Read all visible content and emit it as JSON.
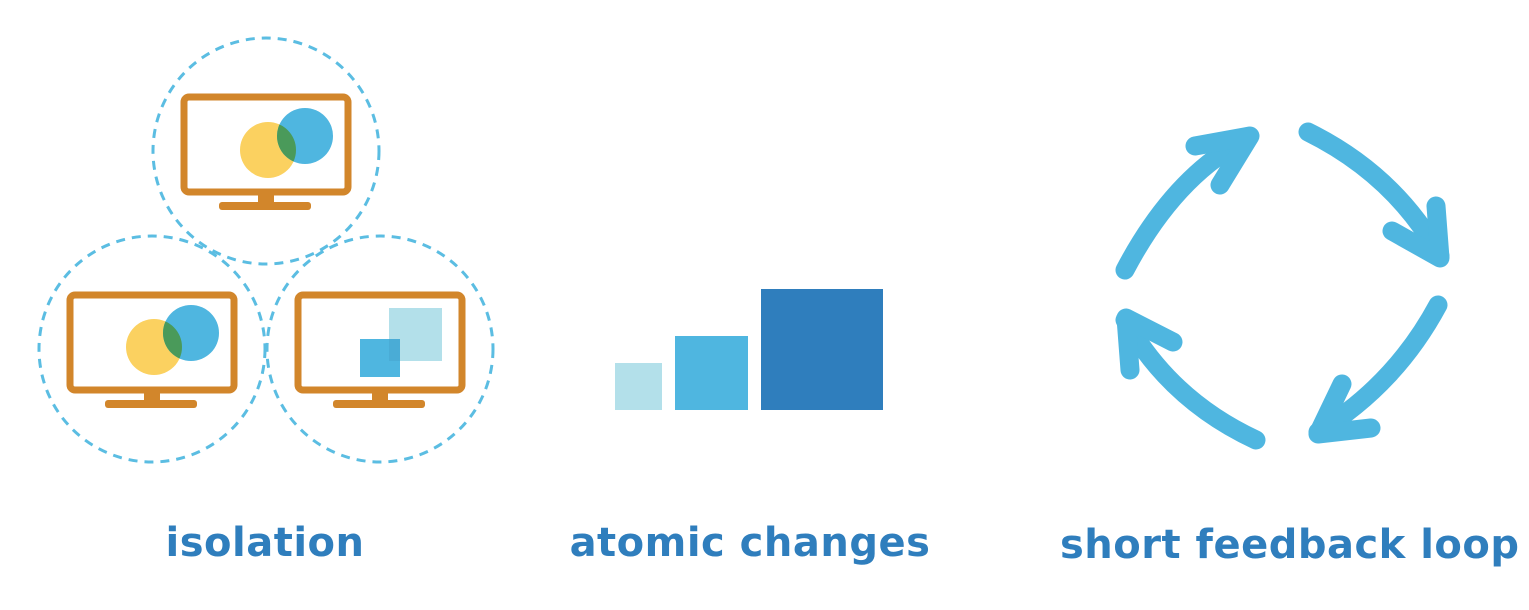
{
  "colors": {
    "monitor": "#d2862b",
    "yellow_circle": "#fbd160",
    "blue_circle": "#4fb6e0",
    "overlap": "#4a9a5a",
    "dashed_circle": "#5bbde2",
    "light_square": "#b3e0ea",
    "mid_square": "#4fb6e0",
    "dark_square": "#2f7ebd",
    "arrow": "#4fb6e0",
    "caption": "#2f7ebd"
  },
  "captions": {
    "isolation": "isolation",
    "atomic_changes": "atomic changes",
    "short_feedback_loop": "short feedback loop"
  },
  "icons": {
    "isolation": "monitors-in-dashed-circles-icon",
    "atomic_changes": "ascending-squares-icon",
    "short_feedback_loop": "circular-arrows-cycle-icon"
  }
}
